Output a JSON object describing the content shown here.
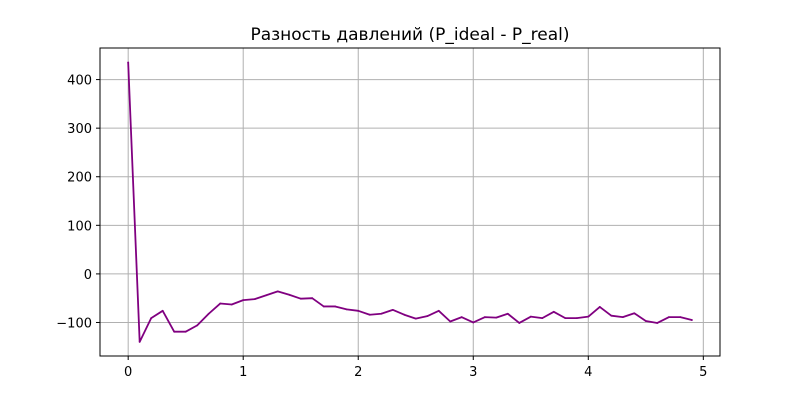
{
  "chart_data": {
    "type": "line",
    "title": "Разность давлений (P_ideal - P_real)",
    "xlabel": "",
    "ylabel": "",
    "xlim": [
      -0.245,
      5.145
    ],
    "ylim": [
      -169,
      465
    ],
    "x_ticks": [
      0,
      1,
      2,
      3,
      4,
      5
    ],
    "y_ticks": [
      -100,
      0,
      100,
      200,
      300,
      400
    ],
    "x_tick_labels": [
      "0",
      "1",
      "2",
      "3",
      "4",
      "5"
    ],
    "y_tick_labels": [
      "−100",
      "0",
      "100",
      "200",
      "300",
      "400"
    ],
    "grid": true,
    "legend": "none",
    "series": [
      {
        "color": "#800080",
        "x": [
          0.0,
          0.1,
          0.2,
          0.3,
          0.4,
          0.5,
          0.6,
          0.7,
          0.8,
          0.9,
          1.0,
          1.1,
          1.2,
          1.3,
          1.4,
          1.5,
          1.6,
          1.7,
          1.8,
          1.9,
          2.0,
          2.1,
          2.2,
          2.3,
          2.4,
          2.5,
          2.6,
          2.7,
          2.8,
          2.9,
          3.0,
          3.1,
          3.2,
          3.3,
          3.4,
          3.5,
          3.6,
          3.7,
          3.8,
          3.9,
          4.0,
          4.1,
          4.2,
          4.3,
          4.4,
          4.5,
          4.6,
          4.7,
          4.8,
          4.9
        ],
        "y": [
          435,
          -140,
          -91,
          -76,
          -119,
          -119,
          -106,
          -82,
          -61,
          -63,
          -54,
          -52,
          -44,
          -36,
          -43,
          -51,
          -50,
          -67,
          -67,
          -73,
          -76,
          -84,
          -82,
          -74,
          -84,
          -92,
          -87,
          -76,
          -98,
          -89,
          -100,
          -89,
          -90,
          -82,
          -101,
          -88,
          -91,
          -78,
          -91,
          -91,
          -88,
          -68,
          -86,
          -89,
          -81,
          -97,
          -101,
          -89,
          -89,
          -95
        ]
      }
    ]
  }
}
